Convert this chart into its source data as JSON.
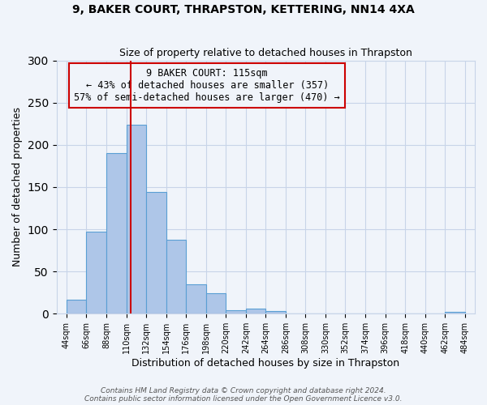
{
  "title": "9, BAKER COURT, THRAPSTON, KETTERING, NN14 4XA",
  "subtitle": "Size of property relative to detached houses in Thrapston",
  "xlabel": "Distribution of detached houses by size in Thrapston",
  "ylabel": "Number of detached properties",
  "bar_heights": [
    17,
    97,
    190,
    224,
    144,
    88,
    35,
    24,
    4,
    6,
    3,
    0,
    0,
    0,
    0,
    0,
    0,
    0,
    0,
    2
  ],
  "bin_edges": [
    44,
    66,
    88,
    110,
    132,
    154,
    176,
    198,
    220,
    242,
    264,
    286,
    308,
    330,
    352,
    374,
    396,
    418,
    440,
    462,
    484
  ],
  "tick_labels": [
    "44sqm",
    "66sqm",
    "88sqm",
    "110sqm",
    "132sqm",
    "154sqm",
    "176sqm",
    "198sqm",
    "220sqm",
    "242sqm",
    "264sqm",
    "286sqm",
    "308sqm",
    "330sqm",
    "352sqm",
    "374sqm",
    "396sqm",
    "418sqm",
    "440sqm",
    "462sqm",
    "484sqm"
  ],
  "bar_color": "#aec6e8",
  "bar_edge_color": "#5a9fd4",
  "vline_x": 115,
  "vline_color": "#cc0000",
  "ylim": [
    0,
    300
  ],
  "yticks": [
    0,
    50,
    100,
    150,
    200,
    250,
    300
  ],
  "annotation_title": "9 BAKER COURT: 115sqm",
  "annotation_line1": "← 43% of detached houses are smaller (357)",
  "annotation_line2": "57% of semi-detached houses are larger (470) →",
  "annotation_box_color": "#cc0000",
  "footer1": "Contains HM Land Registry data © Crown copyright and database right 2024.",
  "footer2": "Contains public sector information licensed under the Open Government Licence v3.0.",
  "bg_color": "#f0f4fa",
  "grid_color": "#c8d4e8"
}
